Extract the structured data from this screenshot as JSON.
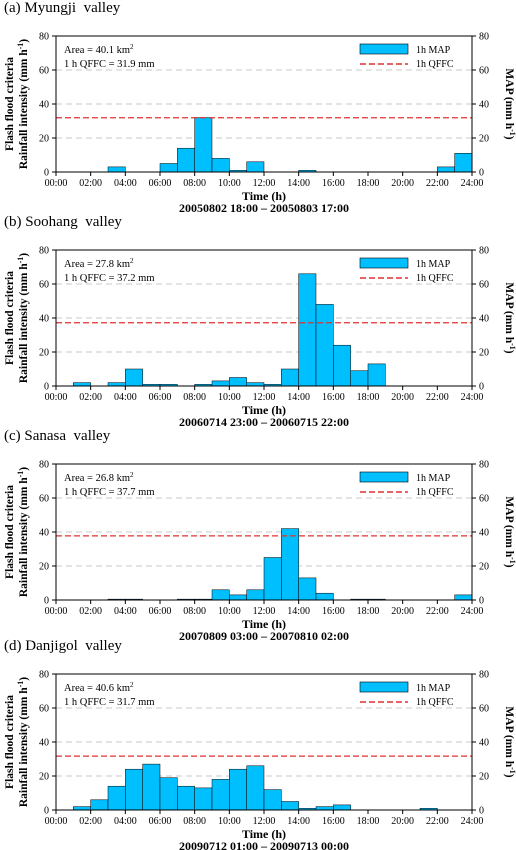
{
  "legend": {
    "bar_label": "1h  MAP",
    "line_label": "1h  QFFC"
  },
  "colors": {
    "bar_fill": "#00bfff",
    "qffc_line": "#e03030",
    "grid": "#c8c8c8"
  },
  "chart_data": [
    {
      "type": "bar",
      "title": "(a) Myungji  valley",
      "area_text": "Area = 40.1 km",
      "area_sup": "2",
      "qffc_text": "1 h  QFFC = 31.9 mm",
      "xlabel": "Time (h)",
      "period": "20050802 18:00 – 20050803 17:00",
      "ylabel_line1": "Flash flood criteria",
      "ylabel_line2": "Rainfall intensity (mm h",
      "ylabel_sup": "-1",
      "y2label": "MAP (mm h",
      "y2label_sup": "-1",
      "y2label_end": ")",
      "ylim": [
        0,
        80
      ],
      "yticks": [
        0,
        20,
        40,
        60,
        80
      ],
      "xticks": [
        "00:00",
        "02:00",
        "04:00",
        "06:00",
        "08:00",
        "10:00",
        "12:00",
        "14:00",
        "16:00",
        "18:00",
        "20:00",
        "22:00",
        "24:00"
      ],
      "qffc": 31.9,
      "values": [
        0,
        0,
        0,
        3,
        0,
        0,
        5,
        14,
        32,
        8,
        1,
        6,
        0,
        0,
        1,
        0,
        0,
        0,
        0,
        0,
        0,
        0,
        3,
        11
      ]
    },
    {
      "type": "bar",
      "title": "(b) Soohang  valley",
      "area_text": "Area = 27.8 km",
      "area_sup": "2",
      "qffc_text": "1 h  QFFC = 37.2 mm",
      "xlabel": "Time (h)",
      "period": "20060714 23:00 – 20060715 22:00",
      "ylabel_line1": "Flash flood criteria",
      "ylabel_line2": "Rainfall intensity (mm h",
      "ylabel_sup": "-1",
      "y2label": "MAP (mm h",
      "y2label_sup": "-1",
      "y2label_end": ")",
      "ylim": [
        0,
        80
      ],
      "yticks": [
        0,
        20,
        40,
        60,
        80
      ],
      "xticks": [
        "00:00",
        "02:00",
        "04:00",
        "06:00",
        "08:00",
        "10:00",
        "12:00",
        "14:00",
        "16:00",
        "18:00",
        "20:00",
        "22:00",
        "24:00"
      ],
      "qffc": 37.2,
      "values": [
        0,
        2,
        0,
        2,
        10,
        1,
        1,
        0,
        1,
        3,
        5,
        2,
        1,
        10,
        66,
        48,
        24,
        9,
        13,
        0,
        0,
        0,
        0,
        0
      ]
    },
    {
      "type": "bar",
      "title": "(c) Sanasa  valley",
      "area_text": "Area = 26.8 km",
      "area_sup": "2",
      "qffc_text": "1 h  QFFC = 37.7 mm",
      "xlabel": "Time (h)",
      "period": "20070809 03:00 – 20070810 02:00",
      "ylabel_line1": "Flash flood criteria",
      "ylabel_line2": "Rainfall intensity (mm h",
      "ylabel_sup": "-1",
      "y2label": "MAP (mm h",
      "y2label_sup": "-1",
      "y2label_end": ")",
      "ylim": [
        0,
        80
      ],
      "yticks": [
        0,
        20,
        40,
        60,
        80
      ],
      "xticks": [
        "00:00",
        "02:00",
        "04:00",
        "06:00",
        "08:00",
        "10:00",
        "12:00",
        "14:00",
        "16:00",
        "18:00",
        "20:00",
        "22:00",
        "24:00"
      ],
      "qffc": 37.7,
      "values": [
        0,
        0,
        0,
        0.5,
        0.5,
        0,
        0,
        0.5,
        0.5,
        6,
        3,
        6,
        25,
        42,
        13,
        4,
        0,
        0.5,
        0.5,
        0,
        0,
        0,
        0,
        3
      ]
    },
    {
      "type": "bar",
      "title": "(d) Danjigol  valley",
      "area_text": "Area = 40.6 km",
      "area_sup": "2",
      "qffc_text": "1 h  QFFC = 31.7 mm",
      "xlabel": "Time (h)",
      "period": "20090712 01:00 – 20090713 00:00",
      "ylabel_line1": "Flash flood criteria",
      "ylabel_line2": "Rainfall intensity (mm h",
      "ylabel_sup": "-1",
      "y2label": "MAP (mm h",
      "y2label_sup": "-1",
      "y2label_end": ")",
      "ylim": [
        0,
        80
      ],
      "yticks": [
        0,
        20,
        40,
        60,
        80
      ],
      "xticks": [
        "00:00",
        "02:00",
        "04:00",
        "06:00",
        "08:00",
        "10:00",
        "12:00",
        "14:00",
        "16:00",
        "18:00",
        "20:00",
        "22:00",
        "24:00"
      ],
      "qffc": 31.7,
      "values": [
        0,
        2,
        6,
        14,
        24,
        27,
        19,
        14,
        13,
        18,
        24,
        26,
        12,
        5,
        1,
        2,
        3,
        0,
        0,
        0,
        0,
        1,
        0,
        0
      ]
    }
  ]
}
